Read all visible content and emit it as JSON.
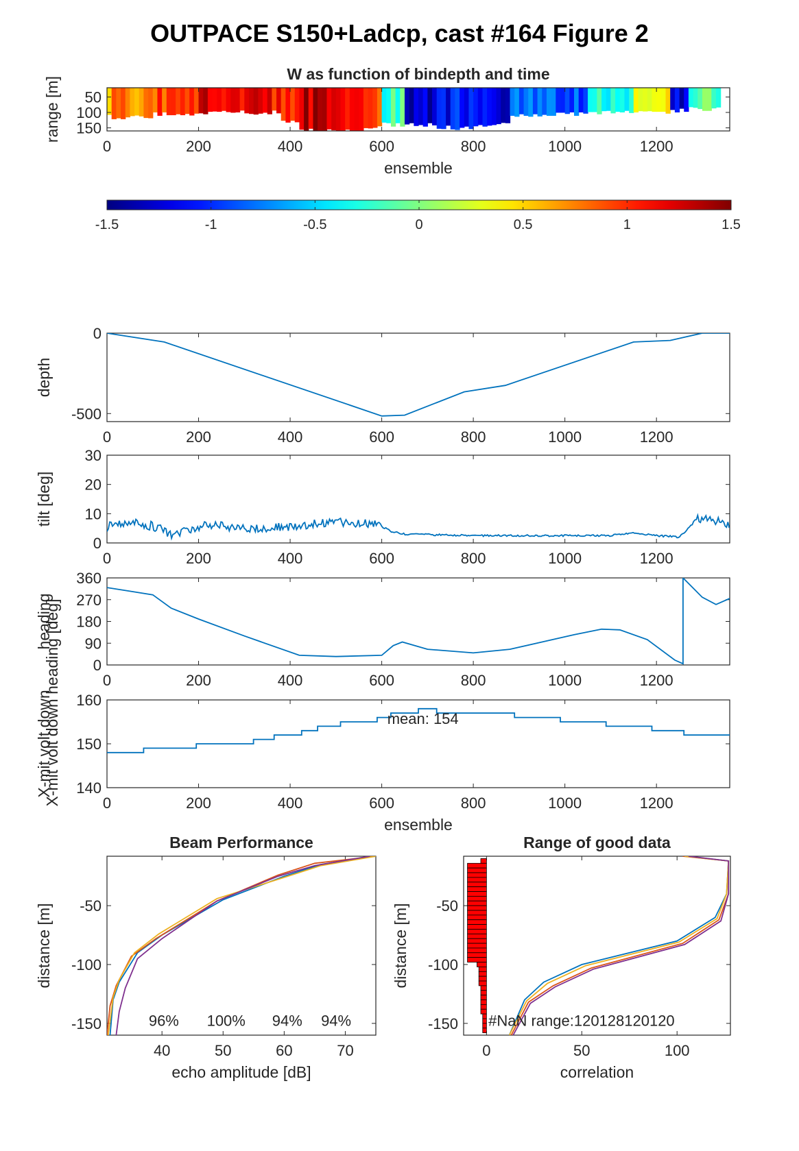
{
  "figure_title": "OUTPACE S150+Ladcp, cast #164 Figure 2",
  "colors": {
    "line": "#0072BD",
    "axis": "#262626",
    "bar": "#FF0000"
  },
  "chart_data": [
    {
      "id": "w-bindepth",
      "type": "heatmap",
      "title": "W as function of bindepth and time",
      "xlabel": "ensemble",
      "ylabel": "range [m]",
      "xlim": [
        0,
        1360
      ],
      "ylim": [
        160,
        20
      ],
      "xticks": [
        0,
        200,
        400,
        600,
        800,
        1000,
        1200
      ],
      "yticks": [
        50,
        100,
        150
      ],
      "colormap": "jet",
      "clim": [
        -1.5,
        1.5
      ],
      "segments": [
        {
          "x": [
            0,
            100
          ],
          "w": 0.7,
          "bottom": 115
        },
        {
          "x": [
            100,
            200
          ],
          "w": 0.9,
          "bottom": 105
        },
        {
          "x": [
            200,
            300
          ],
          "w": 1.2,
          "bottom": 100
        },
        {
          "x": [
            300,
            380
          ],
          "w": 1.1,
          "bottom": 100
        },
        {
          "x": [
            380,
            420
          ],
          "w": 1.0,
          "bottom": 130
        },
        {
          "x": [
            420,
            500
          ],
          "w": 1.3,
          "bottom": 160
        },
        {
          "x": [
            500,
            560
          ],
          "w": 1.0,
          "bottom": 155
        },
        {
          "x": [
            560,
            600
          ],
          "w": 0.8,
          "bottom": 145
        },
        {
          "x": [
            600,
            650
          ],
          "w": -0.2,
          "bottom": 140
        },
        {
          "x": [
            650,
            720
          ],
          "w": -1.3,
          "bottom": 140
        },
        {
          "x": [
            720,
            800
          ],
          "w": -1.1,
          "bottom": 150
        },
        {
          "x": [
            800,
            880
          ],
          "w": -1.2,
          "bottom": 140
        },
        {
          "x": [
            880,
            960
          ],
          "w": -0.8,
          "bottom": 110
        },
        {
          "x": [
            960,
            1050
          ],
          "w": -0.9,
          "bottom": 105
        },
        {
          "x": [
            1050,
            1150
          ],
          "w": -0.3,
          "bottom": 100
        },
        {
          "x": [
            1150,
            1230
          ],
          "w": 0.4,
          "bottom": 100
        },
        {
          "x": [
            1230,
            1270
          ],
          "w": -1.2,
          "bottom": 95
        },
        {
          "x": [
            1270,
            1340
          ],
          "w": -0.1,
          "bottom": 90
        }
      ]
    },
    {
      "id": "colorbar",
      "type": "colorbar",
      "clim": [
        -1.5,
        1.5
      ],
      "ticks": [
        "-1.5",
        "-1",
        "-0.5",
        "0",
        "0.5",
        "1",
        "1.5"
      ]
    },
    {
      "id": "depth",
      "type": "line",
      "ylabel": "depth",
      "xlim": [
        0,
        1360
      ],
      "ylim": [
        -550,
        0
      ],
      "xticks": [
        0,
        200,
        400,
        600,
        800,
        1000,
        1200
      ],
      "yticks": [
        -500,
        0
      ],
      "x": [
        0,
        125,
        600,
        650,
        780,
        870,
        1150,
        1230,
        1300,
        1360
      ],
      "y": [
        0,
        -55,
        -515,
        -510,
        -365,
        -325,
        -55,
        -45,
        0,
        0
      ]
    },
    {
      "id": "tilt",
      "type": "line",
      "ylabel": "tilt [deg]",
      "xlim": [
        0,
        1360
      ],
      "ylim": [
        0,
        30
      ],
      "xticks": [
        0,
        200,
        400,
        600,
        800,
        1000,
        1200
      ],
      "yticks": [
        0,
        10,
        20,
        30
      ],
      "x": [
        0,
        60,
        120,
        140,
        220,
        280,
        350,
        420,
        500,
        590,
        620,
        650,
        800,
        900,
        1000,
        1100,
        1150,
        1200,
        1250,
        1290,
        1330,
        1360
      ],
      "y": [
        5.5,
        7,
        5,
        3,
        6,
        5.5,
        5,
        6,
        7,
        6.5,
        4,
        3,
        2.5,
        2.5,
        2.5,
        2.5,
        3.5,
        2.5,
        2,
        8,
        7.5,
        6
      ]
    },
    {
      "id": "heading",
      "type": "line",
      "ylabel": "heading",
      "xlim": [
        0,
        1360
      ],
      "ylim": [
        0,
        360
      ],
      "xticks": [
        0,
        200,
        400,
        600,
        800,
        1000,
        1200
      ],
      "yticks": [
        0,
        90,
        180,
        270,
        360
      ],
      "x": [
        0,
        50,
        100,
        140,
        200,
        300,
        420,
        500,
        600,
        625,
        645,
        700,
        800,
        880,
        950,
        1020,
        1080,
        1120,
        1180,
        1240,
        1258,
        1258,
        1300,
        1330,
        1360
      ],
      "y": [
        320,
        305,
        290,
        235,
        190,
        120,
        40,
        35,
        40,
        80,
        95,
        65,
        50,
        65,
        95,
        125,
        148,
        145,
        105,
        20,
        5,
        360,
        280,
        250,
        275
      ]
    },
    {
      "id": "xmit-volt",
      "type": "line",
      "ylabel": "X-mit volt down",
      "xlabel": "ensemble",
      "annotation": "mean: 154",
      "xlim": [
        0,
        1360
      ],
      "ylim": [
        140,
        160
      ],
      "xticks": [
        0,
        200,
        400,
        600,
        800,
        1000,
        1200
      ],
      "yticks": [
        140,
        150,
        160
      ],
      "x": [
        0,
        80,
        80,
        195,
        195,
        320,
        320,
        365,
        365,
        425,
        425,
        460,
        460,
        510,
        510,
        590,
        590,
        620,
        620,
        680,
        680,
        720,
        720,
        890,
        890,
        990,
        990,
        1090,
        1090,
        1190,
        1190,
        1260,
        1260,
        1360
      ],
      "y": [
        148,
        148,
        149,
        149,
        150,
        150,
        151,
        151,
        152,
        152,
        153,
        153,
        154,
        154,
        155,
        155,
        156,
        156,
        157,
        157,
        158,
        158,
        157,
        157,
        156,
        156,
        155,
        155,
        154,
        154,
        153,
        153,
        152,
        152
      ]
    },
    {
      "id": "beam-performance",
      "type": "line",
      "title": "Beam Performance",
      "xlabel": "echo amplitude [dB]",
      "ylabel": "distance [m]",
      "xlim": [
        31,
        75
      ],
      "ylim": [
        -160,
        -8
      ],
      "xticks": [
        40,
        50,
        60,
        70
      ],
      "yticks": [
        -150,
        -100,
        -50
      ],
      "percent_labels": [
        {
          "text": "96%",
          "x": 40.3
        },
        {
          "text": "100%",
          "x": 50.5
        },
        {
          "text": "94%",
          "x": 60.5
        },
        {
          "text": "94%",
          "x": 68.5
        }
      ],
      "series": [
        {
          "color": "#0072BD",
          "x": [
            75,
            66,
            60,
            50,
            40,
            36,
            33,
            32,
            31.5
          ],
          "y": [
            -8,
            -15,
            -25,
            -45,
            -75,
            -90,
            -115,
            -130,
            -160
          ]
        },
        {
          "color": "#D95319",
          "x": [
            75,
            65,
            59,
            49,
            39,
            35,
            32.5,
            31.5,
            31
          ],
          "y": [
            -8,
            -14,
            -24,
            -46,
            -78,
            -93,
            -118,
            -135,
            -160
          ]
        },
        {
          "color": "#EDB120",
          "x": [
            75,
            66,
            60,
            49,
            39.5,
            35.5,
            33,
            32,
            31.2
          ],
          "y": [
            -8,
            -16,
            -26,
            -44,
            -74,
            -90,
            -113,
            -128,
            -160
          ]
        },
        {
          "color": "#7E2F8E",
          "x": [
            74,
            65,
            59,
            49,
            40,
            36,
            34,
            33,
            32.5
          ],
          "y": [
            -8,
            -16,
            -25,
            -46,
            -78,
            -95,
            -120,
            -140,
            -160
          ]
        }
      ]
    },
    {
      "id": "range-good-data",
      "type": "line",
      "title": "Range of good data",
      "xlabel": "correlation",
      "ylabel": "distance [m]",
      "annotation": "#NaN range:120128120120",
      "xlim": [
        -12,
        128
      ],
      "ylim": [
        -160,
        -8
      ],
      "xticks": [
        0,
        50,
        100
      ],
      "yticks": [
        -150,
        -100,
        -50
      ],
      "bars": {
        "color": "#FF0000",
        "y": [
          -12,
          -16,
          -20,
          -24,
          -28,
          -32,
          -36,
          -40,
          -44,
          -48,
          -52,
          -56,
          -60,
          -64,
          -68,
          -72,
          -76,
          -80,
          -84,
          -88,
          -92,
          -96,
          -100,
          -104,
          -108,
          -112,
          -116,
          -120,
          -124,
          -128,
          -132,
          -136,
          -140,
          -144,
          -148,
          -152,
          -156
        ],
        "len": [
          3,
          10,
          10,
          10,
          10,
          10,
          10,
          10,
          10,
          10,
          10,
          10,
          10,
          10,
          10,
          10,
          10,
          10,
          10,
          10,
          10,
          10,
          5,
          4,
          4,
          4,
          4,
          3,
          3,
          3,
          3,
          3,
          3,
          2,
          2,
          2,
          2
        ]
      },
      "series": [
        {
          "color": "#0072BD",
          "x": [
            105,
            127,
            126,
            120,
            100,
            50,
            30,
            20,
            12
          ],
          "y": [
            -8,
            -12,
            -40,
            -60,
            -80,
            -100,
            -115,
            -130,
            -160
          ]
        },
        {
          "color": "#D95319",
          "x": [
            103,
            127,
            127,
            122,
            103,
            55,
            35,
            22,
            13
          ],
          "y": [
            -8,
            -12,
            -40,
            -62,
            -82,
            -103,
            -118,
            -132,
            -160
          ]
        },
        {
          "color": "#EDB120",
          "x": [
            104,
            127,
            126,
            121,
            101,
            52,
            32,
            21,
            12
          ],
          "y": [
            -8,
            -12,
            -40,
            -61,
            -81,
            -101,
            -116,
            -131,
            -160
          ]
        },
        {
          "color": "#7E2F8E",
          "x": [
            106,
            127,
            127,
            123,
            104,
            56,
            36,
            23,
            14
          ],
          "y": [
            -8,
            -12,
            -40,
            -63,
            -83,
            -104,
            -119,
            -133,
            -160
          ]
        }
      ]
    }
  ]
}
